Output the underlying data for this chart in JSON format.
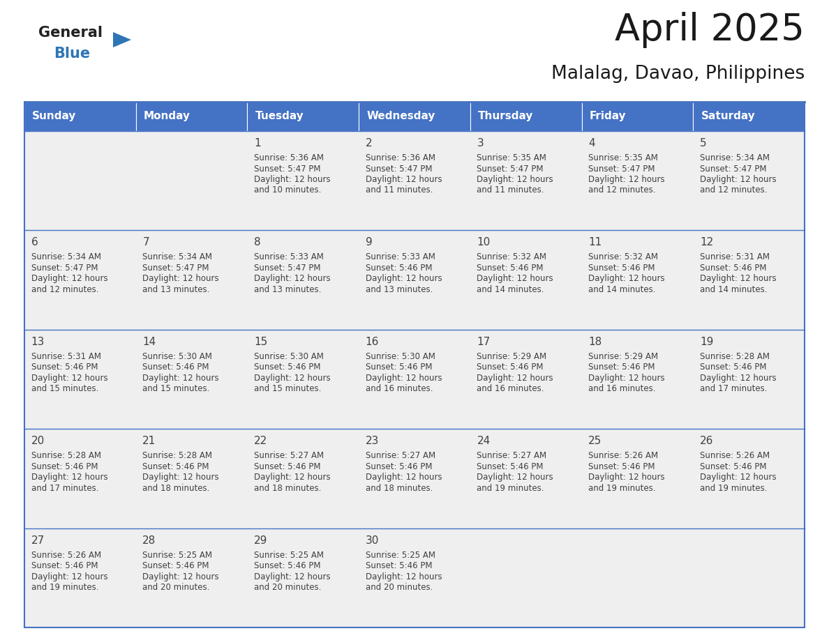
{
  "title": "April 2025",
  "subtitle": "Malalag, Davao, Philippines",
  "days_of_week": [
    "Sunday",
    "Monday",
    "Tuesday",
    "Wednesday",
    "Thursday",
    "Friday",
    "Saturday"
  ],
  "header_bg": "#4472C4",
  "header_text": "#FFFFFF",
  "cell_bg_light": "#EFEFEF",
  "border_color": "#4472C4",
  "text_color": "#404040",
  "title_color": "#1a1a1a",
  "logo_general_color": "#222222",
  "logo_blue_color": "#2E75B6",
  "calendar_data": [
    [
      null,
      null,
      {
        "day": 1,
        "sunrise": "5:36 AM",
        "sunset": "5:47 PM",
        "daylight": "12 hours and 10 minutes."
      },
      {
        "day": 2,
        "sunrise": "5:36 AM",
        "sunset": "5:47 PM",
        "daylight": "12 hours and 11 minutes."
      },
      {
        "day": 3,
        "sunrise": "5:35 AM",
        "sunset": "5:47 PM",
        "daylight": "12 hours and 11 minutes."
      },
      {
        "day": 4,
        "sunrise": "5:35 AM",
        "sunset": "5:47 PM",
        "daylight": "12 hours and 12 minutes."
      },
      {
        "day": 5,
        "sunrise": "5:34 AM",
        "sunset": "5:47 PM",
        "daylight": "12 hours and 12 minutes."
      }
    ],
    [
      {
        "day": 6,
        "sunrise": "5:34 AM",
        "sunset": "5:47 PM",
        "daylight": "12 hours and 12 minutes."
      },
      {
        "day": 7,
        "sunrise": "5:34 AM",
        "sunset": "5:47 PM",
        "daylight": "12 hours and 13 minutes."
      },
      {
        "day": 8,
        "sunrise": "5:33 AM",
        "sunset": "5:47 PM",
        "daylight": "12 hours and 13 minutes."
      },
      {
        "day": 9,
        "sunrise": "5:33 AM",
        "sunset": "5:46 PM",
        "daylight": "12 hours and 13 minutes."
      },
      {
        "day": 10,
        "sunrise": "5:32 AM",
        "sunset": "5:46 PM",
        "daylight": "12 hours and 14 minutes."
      },
      {
        "day": 11,
        "sunrise": "5:32 AM",
        "sunset": "5:46 PM",
        "daylight": "12 hours and 14 minutes."
      },
      {
        "day": 12,
        "sunrise": "5:31 AM",
        "sunset": "5:46 PM",
        "daylight": "12 hours and 14 minutes."
      }
    ],
    [
      {
        "day": 13,
        "sunrise": "5:31 AM",
        "sunset": "5:46 PM",
        "daylight": "12 hours and 15 minutes."
      },
      {
        "day": 14,
        "sunrise": "5:30 AM",
        "sunset": "5:46 PM",
        "daylight": "12 hours and 15 minutes."
      },
      {
        "day": 15,
        "sunrise": "5:30 AM",
        "sunset": "5:46 PM",
        "daylight": "12 hours and 15 minutes."
      },
      {
        "day": 16,
        "sunrise": "5:30 AM",
        "sunset": "5:46 PM",
        "daylight": "12 hours and 16 minutes."
      },
      {
        "day": 17,
        "sunrise": "5:29 AM",
        "sunset": "5:46 PM",
        "daylight": "12 hours and 16 minutes."
      },
      {
        "day": 18,
        "sunrise": "5:29 AM",
        "sunset": "5:46 PM",
        "daylight": "12 hours and 16 minutes."
      },
      {
        "day": 19,
        "sunrise": "5:28 AM",
        "sunset": "5:46 PM",
        "daylight": "12 hours and 17 minutes."
      }
    ],
    [
      {
        "day": 20,
        "sunrise": "5:28 AM",
        "sunset": "5:46 PM",
        "daylight": "12 hours and 17 minutes."
      },
      {
        "day": 21,
        "sunrise": "5:28 AM",
        "sunset": "5:46 PM",
        "daylight": "12 hours and 18 minutes."
      },
      {
        "day": 22,
        "sunrise": "5:27 AM",
        "sunset": "5:46 PM",
        "daylight": "12 hours and 18 minutes."
      },
      {
        "day": 23,
        "sunrise": "5:27 AM",
        "sunset": "5:46 PM",
        "daylight": "12 hours and 18 minutes."
      },
      {
        "day": 24,
        "sunrise": "5:27 AM",
        "sunset": "5:46 PM",
        "daylight": "12 hours and 19 minutes."
      },
      {
        "day": 25,
        "sunrise": "5:26 AM",
        "sunset": "5:46 PM",
        "daylight": "12 hours and 19 minutes."
      },
      {
        "day": 26,
        "sunrise": "5:26 AM",
        "sunset": "5:46 PM",
        "daylight": "12 hours and 19 minutes."
      }
    ],
    [
      {
        "day": 27,
        "sunrise": "5:26 AM",
        "sunset": "5:46 PM",
        "daylight": "12 hours and 19 minutes."
      },
      {
        "day": 28,
        "sunrise": "5:25 AM",
        "sunset": "5:46 PM",
        "daylight": "12 hours and 20 minutes."
      },
      {
        "day": 29,
        "sunrise": "5:25 AM",
        "sunset": "5:46 PM",
        "daylight": "12 hours and 20 minutes."
      },
      {
        "day": 30,
        "sunrise": "5:25 AM",
        "sunset": "5:46 PM",
        "daylight": "12 hours and 20 minutes."
      },
      null,
      null,
      null
    ]
  ]
}
